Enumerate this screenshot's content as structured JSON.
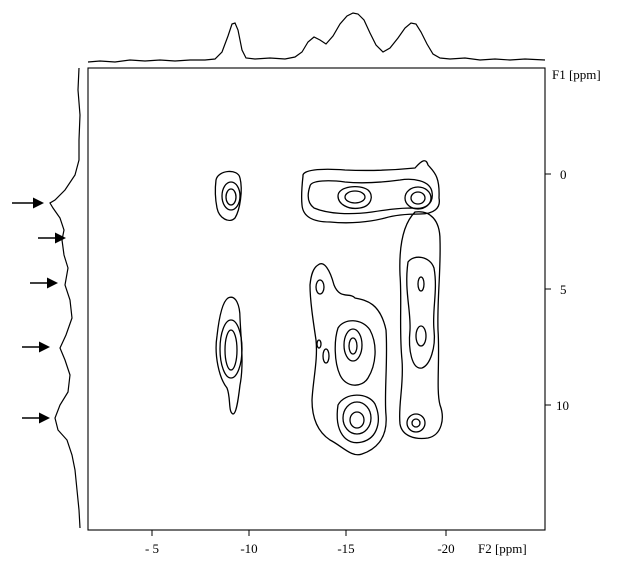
{
  "chart_data": {
    "type": "contour",
    "x_axis": {
      "label": "F2 [ppm]",
      "range": [
        -2,
        -25
      ],
      "ticks": [
        -5,
        -10,
        -15,
        -20
      ],
      "tick_labels": [
        "- 5",
        "-10",
        "-15",
        "-20"
      ]
    },
    "y_axis": {
      "label": "F1 [ppm]",
      "range": [
        -5,
        15
      ],
      "ticks": [
        0,
        5,
        10
      ],
      "tick_labels": [
        "0",
        "5",
        "10"
      ]
    },
    "top_projection_peaks_f2": [
      -10.0,
      -13.5,
      -15.5,
      -18.5
    ],
    "left_projection_peaks_f1": [
      1.0,
      2.8,
      4.8,
      7.5,
      10.5
    ],
    "arrows_at_f1": [
      1.0,
      2.8,
      4.8,
      7.5,
      10.5
    ],
    "cross_peaks": [
      {
        "f2": -9.5,
        "f1": 1.0
      },
      {
        "f2": -9.5,
        "f1": 7.5
      },
      {
        "f2": -14.0,
        "f1": 1.0
      },
      {
        "f2": -15.0,
        "f1": 1.0
      },
      {
        "f2": -18.5,
        "f1": 1.0
      },
      {
        "f2": -13.5,
        "f1": 5.0
      },
      {
        "f2": -15.0,
        "f1": 7.5
      },
      {
        "f2": -15.0,
        "f1": 10.5
      },
      {
        "f2": -18.5,
        "f1": 5.0
      },
      {
        "f2": -18.5,
        "f1": 7.0
      },
      {
        "f2": -18.5,
        "f1": 10.5
      }
    ]
  }
}
